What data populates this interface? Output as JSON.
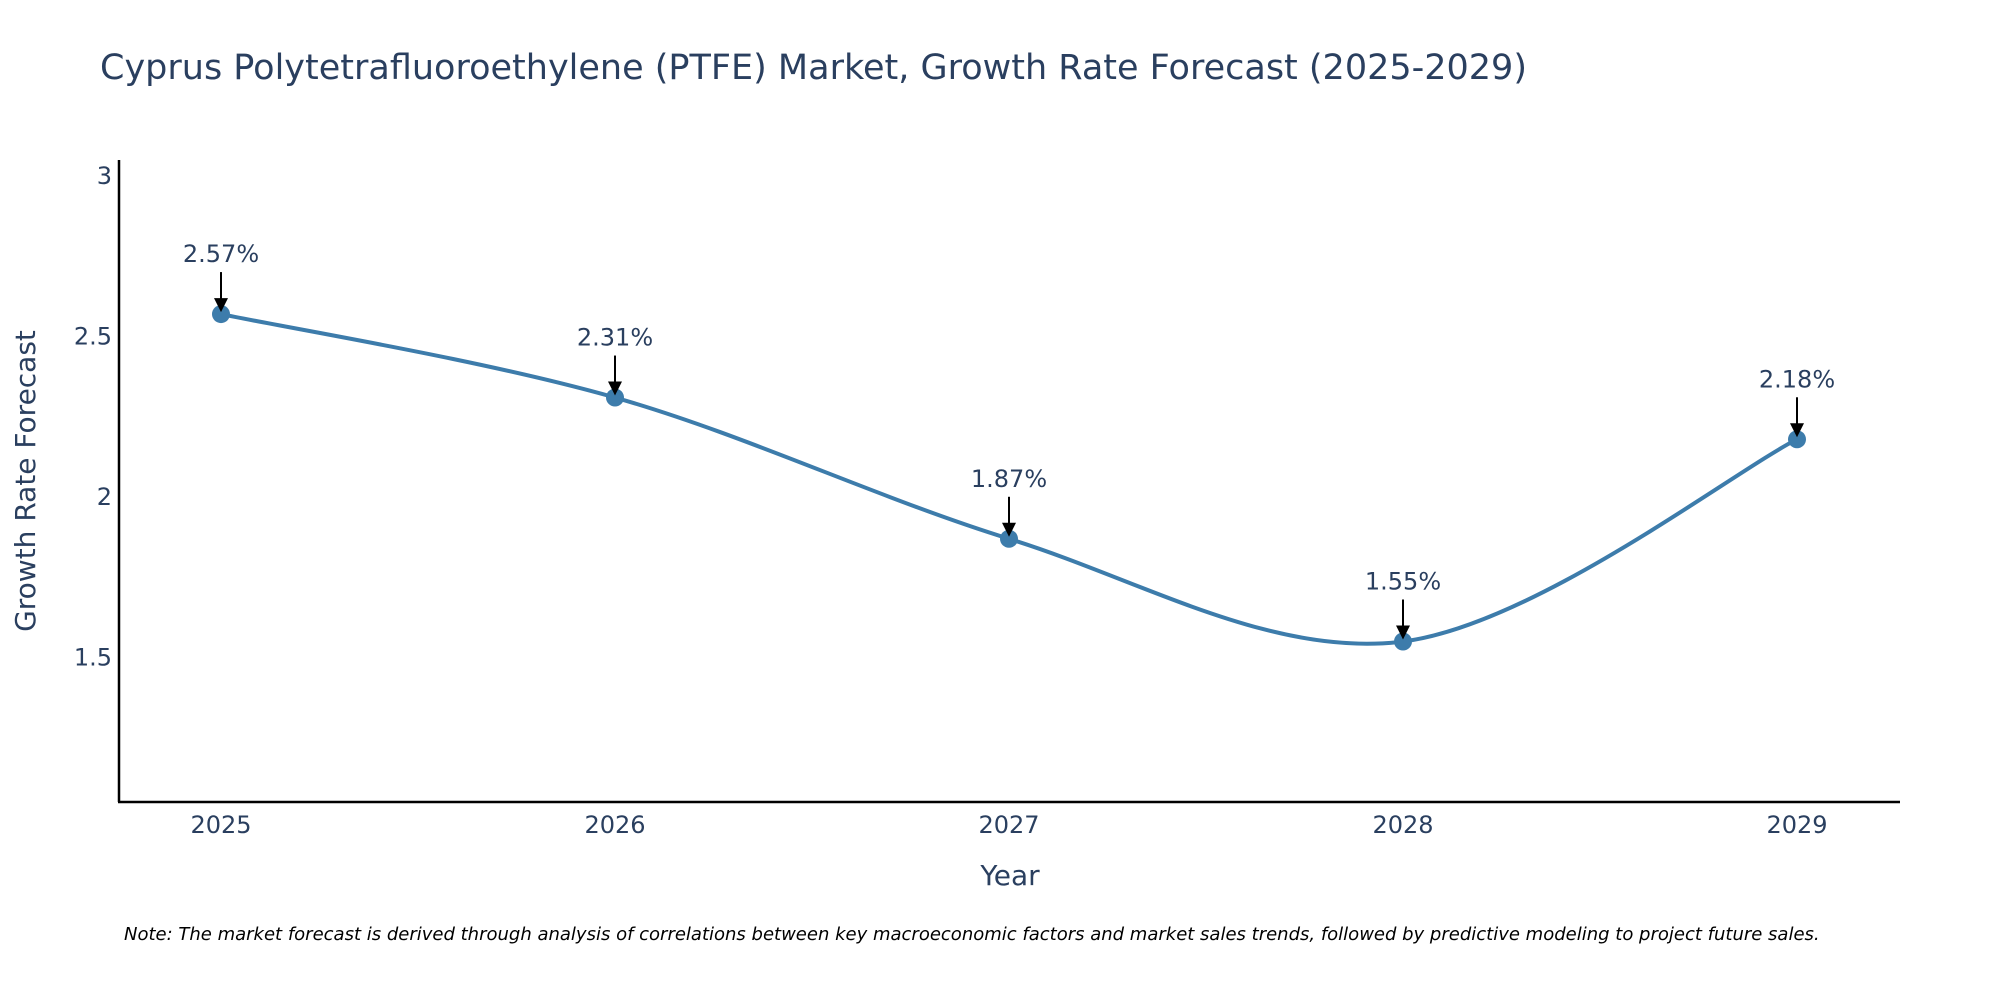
{
  "chart_data": {
    "type": "line",
    "title": "Cyprus Polytetrafluoroethylene (PTFE) Market, Growth Rate Forecast (2025-2029)",
    "xlabel": "Year",
    "ylabel": "Growth Rate Forecast",
    "categories": [
      "2025",
      "2026",
      "2027",
      "2028",
      "2029"
    ],
    "values": [
      2.57,
      2.31,
      1.87,
      1.55,
      2.18
    ],
    "data_labels": [
      "2.57%",
      "2.31%",
      "1.87%",
      "1.55%",
      "2.18%"
    ],
    "ylim": [
      1.05,
      3.05
    ],
    "yticks": [
      1.5,
      2,
      2.5,
      3
    ],
    "ytick_labels": [
      "1.5",
      "2",
      "2.5",
      "3"
    ],
    "grid": false,
    "line_shape": "spline",
    "colors": {
      "series": "#3d7cab",
      "axis": "#000000",
      "text": "#2a3f5f",
      "arrow": "#000000"
    }
  },
  "note": "Note: The market forecast is derived through analysis of correlations between key macroeconomic factors and market sales trends, followed by predictive modeling to project future sales."
}
